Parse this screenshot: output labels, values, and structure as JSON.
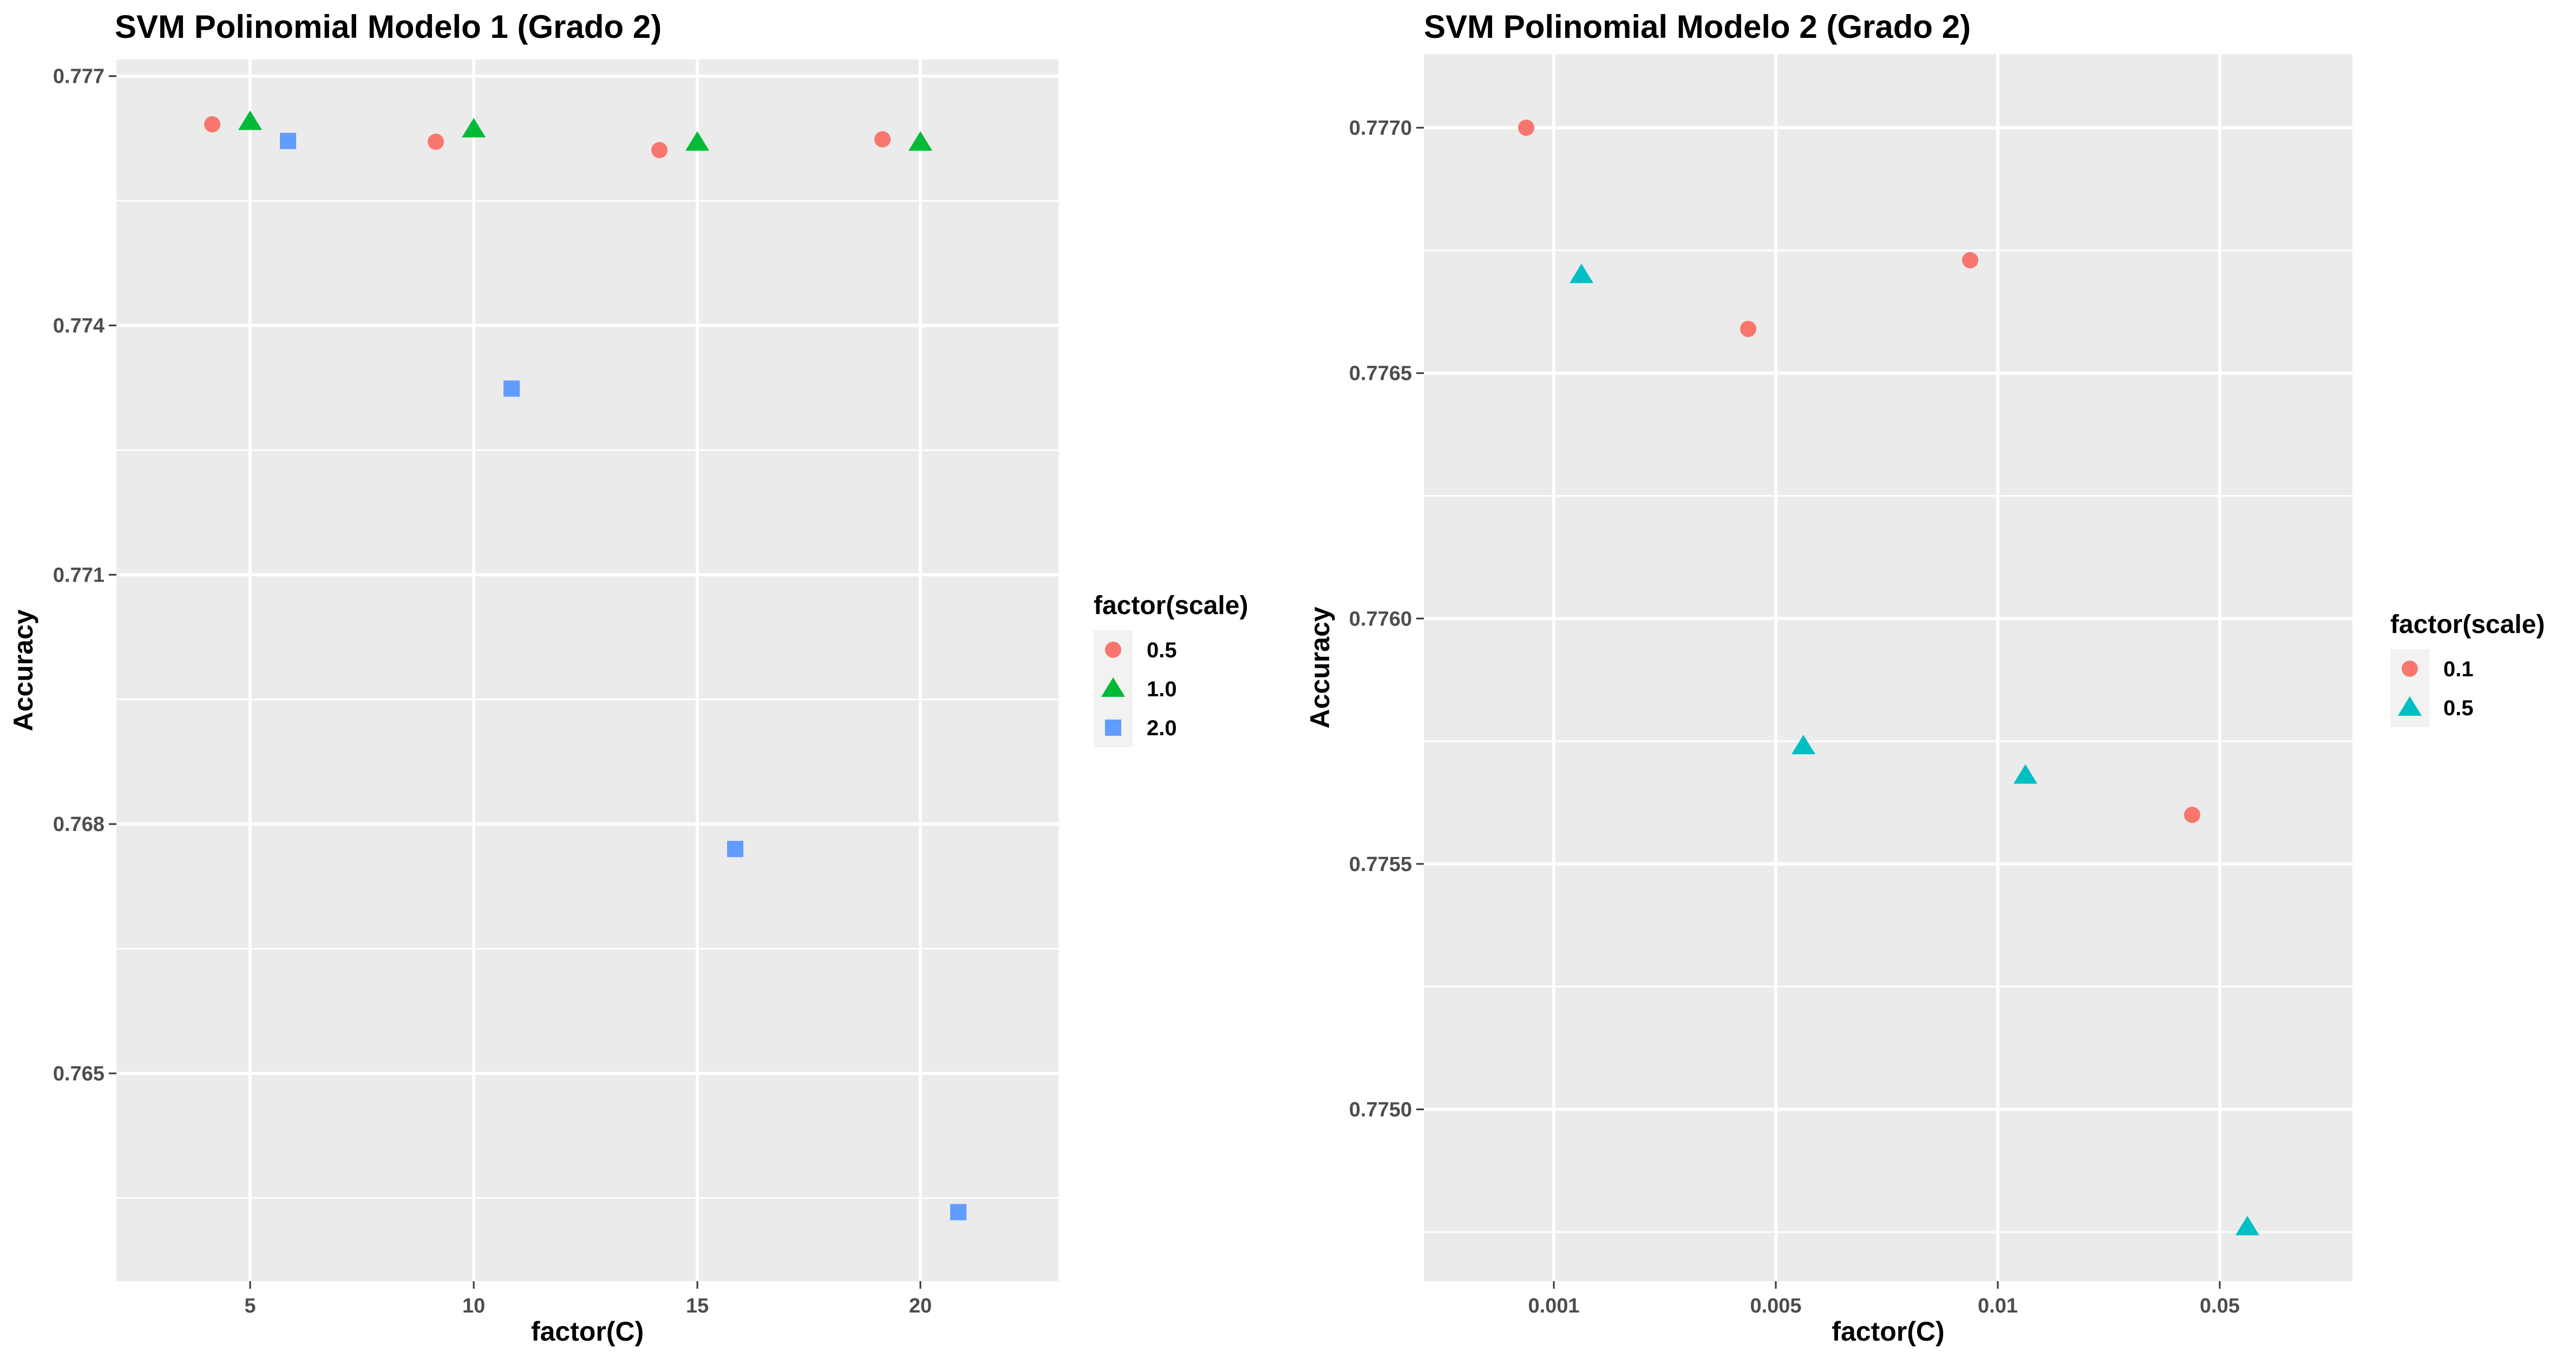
{
  "chart_data": [
    {
      "type": "scatter",
      "title": "SVM Polinomial Modelo 1 (Grado 2)",
      "xlabel": "factor(C)",
      "ylabel": "Accuracy",
      "x_scale": "discrete",
      "categories": [
        "5",
        "10",
        "15",
        "20"
      ],
      "ylim": [
        0.7625,
        0.7772
      ],
      "yticks": [
        "0.765",
        "0.768",
        "0.771",
        "0.774",
        "0.777"
      ],
      "grid": true,
      "legend": {
        "title": "factor(scale)",
        "position": "right"
      },
      "series": [
        {
          "name": "0.5",
          "color": "#F8766D",
          "shape": "circle",
          "values": [
            0.77642,
            0.77621,
            0.77611,
            0.77624
          ]
        },
        {
          "name": "1.0",
          "color": "#00BA38",
          "shape": "triangle",
          "values": [
            0.77645,
            0.77636,
            0.7762,
            0.7762
          ]
        },
        {
          "name": "2.0",
          "color": "#619CFF",
          "shape": "square",
          "values": [
            0.77622,
            0.77324,
            0.7677,
            0.76333
          ]
        }
      ]
    },
    {
      "type": "scatter",
      "title": "SVM Polinomial Modelo 2 (Grado 2)",
      "xlabel": "factor(C)",
      "ylabel": "Accuracy",
      "x_scale": "discrete",
      "categories": [
        "0.001",
        "0.005",
        "0.01",
        "0.05"
      ],
      "ylim": [
        0.77465,
        0.77715
      ],
      "yticks": [
        "0.7750",
        "0.7755",
        "0.7760",
        "0.7765",
        "0.7770"
      ],
      "grid": true,
      "legend": {
        "title": "factor(scale)",
        "position": "right"
      },
      "series": [
        {
          "name": "0.1",
          "color": "#F8766D",
          "shape": "circle",
          "values": [
            0.777,
            0.77659,
            0.77673,
            0.7756
          ]
        },
        {
          "name": "0.5",
          "color": "#00BFC4",
          "shape": "triangle",
          "values": [
            0.7767,
            0.77574,
            0.77568,
            0.77476
          ]
        }
      ]
    }
  ]
}
